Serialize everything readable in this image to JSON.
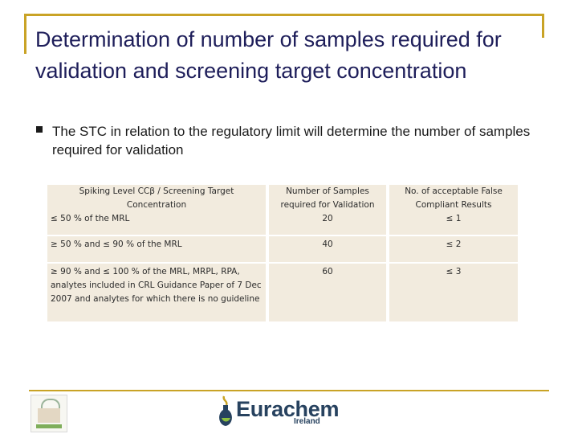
{
  "slide": {
    "title": "Determination of number of samples required for validation and screening target concentration",
    "bullet": "The STC in relation to the regulatory limit will determine the number of samples required for validation"
  },
  "table": {
    "headers": [
      "Spiking Level CCβ / Screening Target Concentration",
      "Number of Samples required for Validation",
      "No. of acceptable False Compliant Results"
    ],
    "rows": [
      {
        "level": "≤ 50 % of the MRL",
        "samples": "20",
        "false_compliant": "≤ 1"
      },
      {
        "level": "≥ 50 % and ≤ 90 % of the MRL",
        "samples": "40",
        "false_compliant": "≤ 2"
      },
      {
        "level": "≥ 90 % and ≤ 100 % of the MRL, MRPL, RPA, analytes included in CRL Guidance Paper of 7 Dec 2007 and analytes for which there is no guideline",
        "samples": "60",
        "false_compliant": "≤ 3"
      }
    ]
  },
  "footer": {
    "logo_main": "Eurachem",
    "logo_sub": "Ireland"
  },
  "colors": {
    "accent": "#c9a326",
    "title": "#1e1e5a",
    "table_bg": "#f2ebde",
    "logo": "#27425f"
  }
}
